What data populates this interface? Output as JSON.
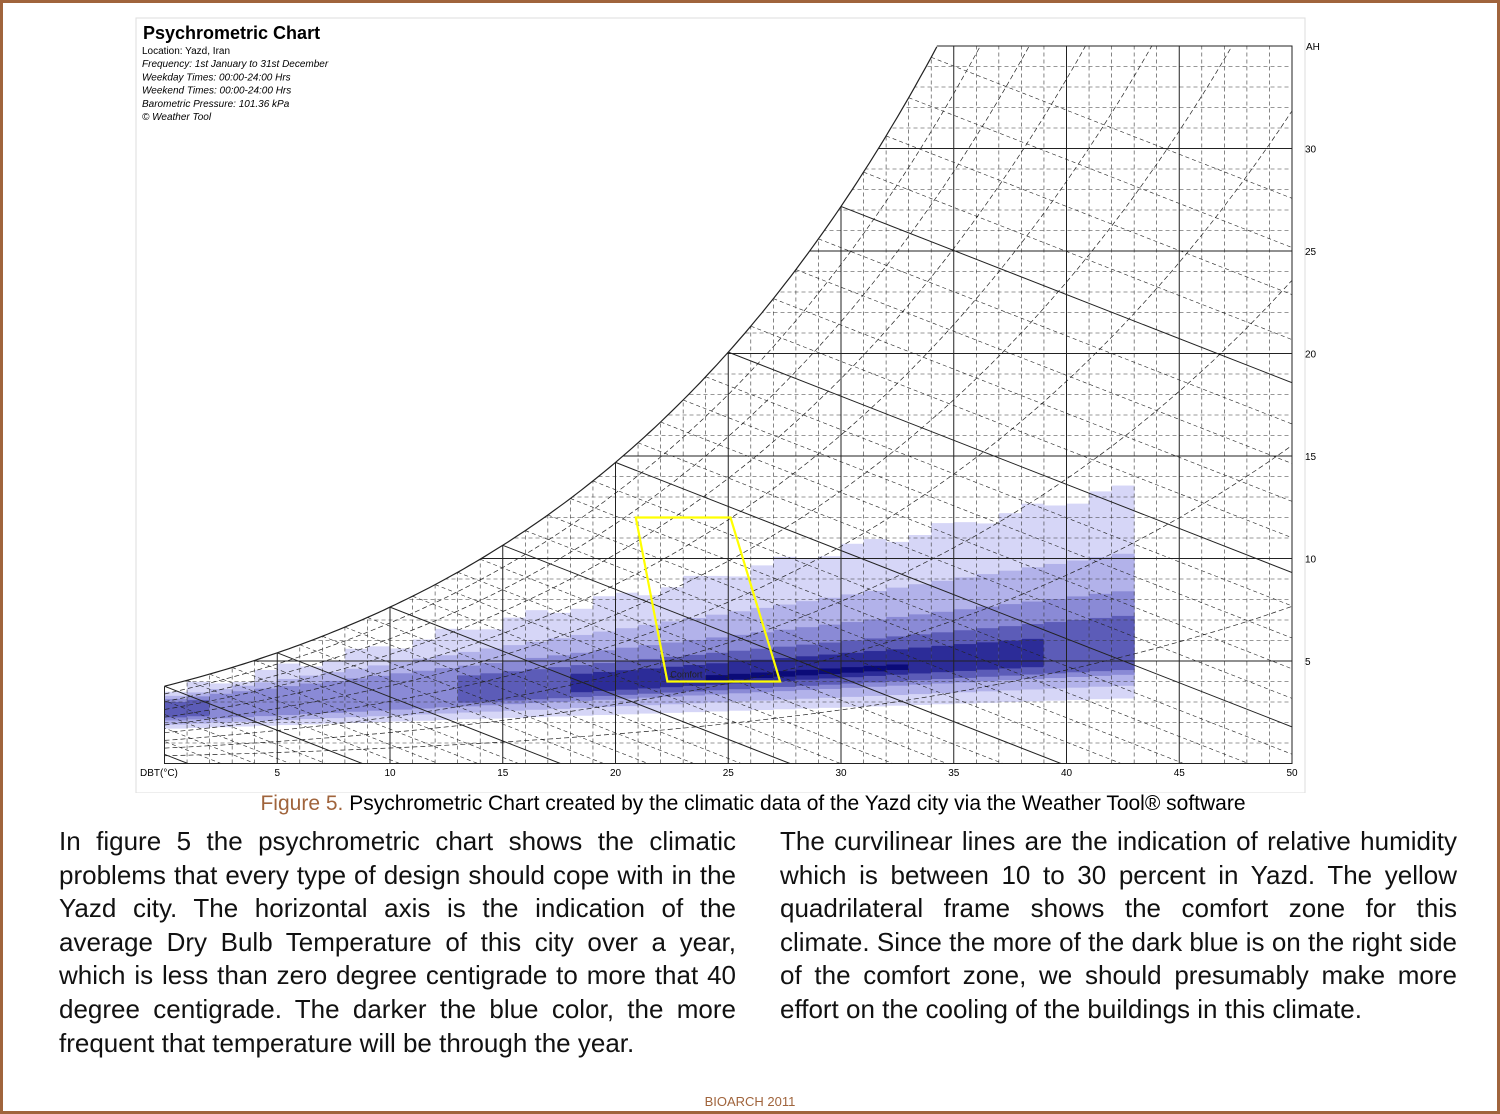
{
  "chart_data": {
    "type": "psychrometric",
    "title": "Psychrometric Chart",
    "subtitle_lines": [
      "Location: Yazd, Iran",
      "Frequency: 1st January to 31st December",
      "Weekday Times: 00:00-24:00 Hrs",
      "Weekend Times: 00:00-24:00 Hrs",
      "Barometric Pressure: 101.36 kPa",
      "© Weather Tool"
    ],
    "x_label": "DBT(°C)",
    "y_label": "AH",
    "xlim": [
      0,
      50
    ],
    "xticks": [
      5,
      10,
      15,
      20,
      25,
      30,
      35,
      40,
      45,
      50
    ],
    "ylim": [
      0,
      35
    ],
    "yticks": [
      5,
      10,
      15,
      20,
      25,
      30
    ],
    "comfort_zone": {
      "label": "Comfort",
      "color": "#ffff00",
      "dbt": [
        20.9,
        25.1,
        27.3,
        22.3
      ],
      "ah": [
        12,
        12,
        4,
        4
      ]
    }
  },
  "caption": {
    "label": "Figure 5.",
    "text": "Psychrometric Chart created by the climatic data of the Yazd city via the Weather Tool® software"
  },
  "body": {
    "columns": [
      "In figure 5 the psychrometric chart shows the climatic problems that every type of design should cope with in the Yazd city. The horizontal axis is the indication of the average Dry Bulb Temperature of this city over a year, which is less than zero degree centigrade to more that 40 degree centigrade. The darker the blue color, the more frequent that temperature will be through the year.",
      "The curvilinear lines are the indication of relative humidity which is between 10 to 30 percent in Yazd. The yellow quadrilateral frame shows the comfort zone for this climate. Since the more of the dark blue is on the right side of the comfort zone, we should presumably make more effort on the cooling of the buildings in this climate."
    ]
  },
  "footer": "BIOARCH 2011"
}
